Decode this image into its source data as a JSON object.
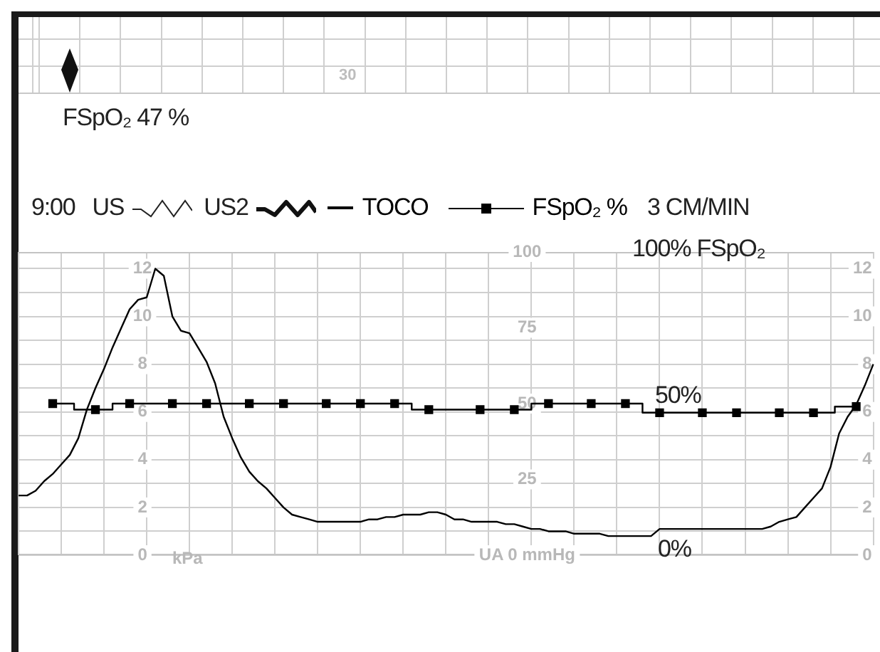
{
  "chart_data": {
    "type": "line",
    "categories": [
      null,
      null,
      null,
      null,
      null,
      null,
      null,
      null,
      null,
      null,
      null,
      null,
      null,
      null,
      null,
      null,
      null,
      null,
      null,
      null,
      null,
      null,
      null,
      null,
      null,
      null,
      null,
      null,
      null,
      null,
      null,
      null,
      null,
      null,
      null,
      null,
      null,
      null,
      null,
      null,
      null,
      null,
      null,
      null,
      null,
      null,
      null,
      null,
      null,
      null,
      null,
      null,
      null,
      null,
      null,
      null,
      null,
      null,
      null,
      null,
      null,
      null,
      null,
      null,
      null,
      null,
      null,
      null,
      null,
      null,
      null,
      null,
      null,
      null,
      null,
      null,
      null,
      null,
      null,
      null,
      null,
      null,
      null,
      null,
      null,
      null,
      null,
      null,
      null,
      null,
      null,
      null,
      null,
      null,
      null,
      null,
      null,
      null,
      null,
      null,
      null
    ],
    "series": [
      {
        "name": "TOCO",
        "color": "#000000",
        "axis": "y",
        "values": [
          2.5,
          2.5,
          2.7,
          3.1,
          3.4,
          3.8,
          4.2,
          4.9,
          6.1,
          7.0,
          7.8,
          8.7,
          9.5,
          10.3,
          10.7,
          10.8,
          12.0,
          11.7,
          10.0,
          9.4,
          9.3,
          8.7,
          8.1,
          7.2,
          5.8,
          4.9,
          4.1,
          3.5,
          3.1,
          2.8,
          2.4,
          2.0,
          1.7,
          1.6,
          1.5,
          1.4,
          1.4,
          1.4,
          1.4,
          1.4,
          1.4,
          1.5,
          1.5,
          1.6,
          1.6,
          1.7,
          1.7,
          1.7,
          1.8,
          1.8,
          1.7,
          1.5,
          1.5,
          1.4,
          1.4,
          1.4,
          1.4,
          1.3,
          1.3,
          1.2,
          1.1,
          1.1,
          1.0,
          1.0,
          1.0,
          0.9,
          0.9,
          0.9,
          0.9,
          0.8,
          0.8,
          0.8,
          0.8,
          0.8,
          0.8,
          1.1,
          1.1,
          1.1,
          1.1,
          1.1,
          1.1,
          1.1,
          1.1,
          1.1,
          1.1,
          1.1,
          1.1,
          1.1,
          1.2,
          1.4,
          1.5,
          1.6,
          2.0,
          2.4,
          2.8,
          3.7,
          5.1,
          5.8,
          6.3,
          7.1,
          8.0
        ]
      },
      {
        "name": "FSpO₂ %",
        "type": "step",
        "color": "#000000",
        "axis": "y3",
        "marker": "square",
        "values": [
          null,
          null,
          null,
          null,
          50,
          null,
          null,
          null,
          null,
          48,
          null,
          null,
          null,
          50,
          null,
          null,
          null,
          null,
          50,
          null,
          null,
          null,
          50,
          null,
          null,
          null,
          null,
          50,
          null,
          null,
          null,
          50,
          null,
          null,
          null,
          null,
          50,
          null,
          null,
          null,
          50,
          null,
          null,
          null,
          50,
          null,
          null,
          null,
          48,
          null,
          null,
          null,
          null,
          null,
          48,
          null,
          null,
          null,
          48,
          null,
          null,
          null,
          50,
          null,
          null,
          null,
          null,
          50,
          null,
          null,
          null,
          50,
          null,
          null,
          null,
          47,
          null,
          null,
          null,
          null,
          47,
          null,
          null,
          null,
          47,
          null,
          null,
          null,
          null,
          47,
          null,
          null,
          null,
          47,
          null,
          null,
          null,
          null,
          49,
          null,
          null
        ]
      }
    ],
    "ylim": [
      0,
      12.7
    ],
    "yticks": [
      0,
      {
        "value": 1,
        "label": null
      },
      2,
      {
        "value": 3,
        "label": null
      },
      4,
      {
        "value": 5,
        "label": null
      },
      6,
      {
        "value": 7,
        "label": null
      },
      8,
      {
        "value": 9,
        "label": null
      },
      10,
      {
        "value": 11,
        "label": null
      },
      12
    ],
    "y2lim": [
      0,
      12.7
    ],
    "y2ticks": [
      0,
      2,
      4,
      6,
      8,
      10,
      12
    ],
    "y3lim": [
      0,
      100
    ],
    "y3ticks": [
      {
        "value": 0,
        "label": "UA 0 mmHg"
      },
      25,
      50,
      75,
      100
    ],
    "annotations": [
      "30",
      "FSpO₂ 47 %",
      "9:00",
      "US",
      "US2",
      "3 CM/MIN",
      "kPa",
      "100% FSpO₂",
      "50%",
      "0%"
    ],
    "grid": true,
    "legend": "top",
    "tick_labels": "y"
  }
}
